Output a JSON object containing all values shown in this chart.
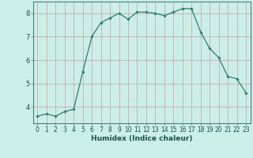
{
  "x": [
    0,
    1,
    2,
    3,
    4,
    5,
    6,
    7,
    8,
    9,
    10,
    11,
    12,
    13,
    14,
    15,
    16,
    17,
    18,
    19,
    20,
    21,
    22,
    23
  ],
  "y": [
    3.6,
    3.7,
    3.6,
    3.8,
    3.9,
    5.5,
    7.0,
    7.6,
    7.8,
    8.0,
    7.75,
    8.05,
    8.05,
    8.0,
    7.9,
    8.05,
    8.2,
    8.2,
    7.2,
    6.5,
    6.1,
    5.3,
    5.2,
    4.6
  ],
  "line_color": "#2e7d6e",
  "marker": "D",
  "marker_size": 1.8,
  "bg_color": "#cceee8",
  "grid_color_v": "#c8a0a0",
  "grid_color_h": "#c8a0a0",
  "xlabel": "Humidex (Indice chaleur)",
  "xlabel_fontsize": 6.5,
  "ylabel_ticks": [
    4,
    5,
    6,
    7,
    8
  ],
  "xlim": [
    -0.5,
    23.5
  ],
  "ylim": [
    3.3,
    8.5
  ],
  "tick_fontsize": 5.5,
  "tick_label_color": "#1a5050"
}
